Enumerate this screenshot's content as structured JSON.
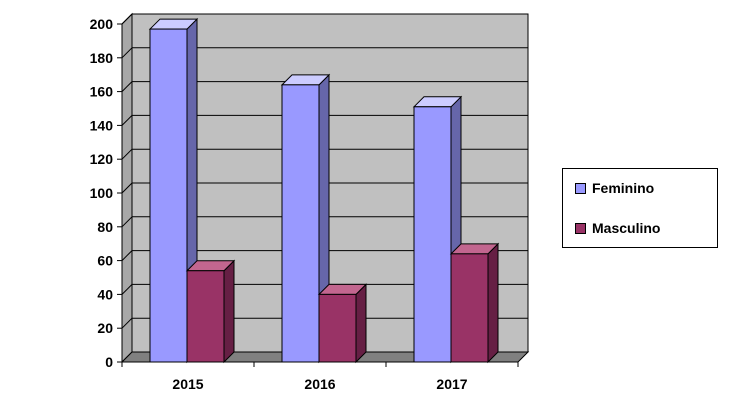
{
  "chart_data": {
    "type": "bar",
    "categories": [
      "2015",
      "2016",
      "2017"
    ],
    "series": [
      {
        "name": "Feminino",
        "values": [
          197,
          164,
          151
        ],
        "color": "#9999ff",
        "side_color": "#6666aa",
        "top_color": "#ccccff"
      },
      {
        "name": "Masculino",
        "values": [
          54,
          40,
          64
        ],
        "color": "#993366",
        "side_color": "#661f44",
        "top_color": "#c2668f"
      }
    ],
    "ylim": [
      0,
      200
    ],
    "yticks": [
      "0",
      "20",
      "40",
      "60",
      "80",
      "100",
      "120",
      "140",
      "160",
      "180",
      "200"
    ],
    "grid": true,
    "legend_position": "right",
    "title": "",
    "xlabel": "",
    "ylabel": ""
  }
}
